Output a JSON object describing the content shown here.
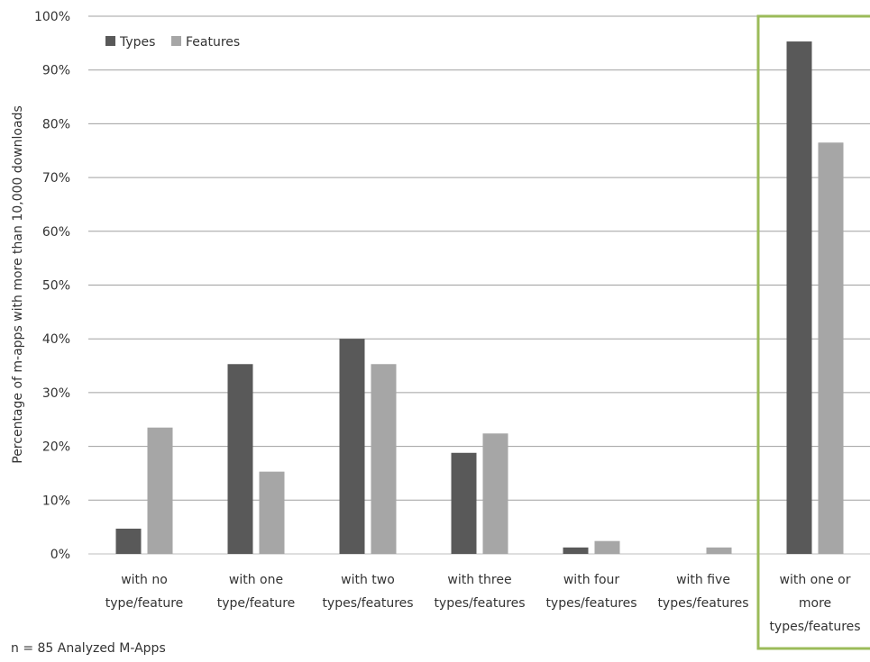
{
  "chart_data": {
    "type": "bar",
    "ylabel": "Percentage of m-apps with more than 10,000 downloads",
    "ylim": [
      0,
      100
    ],
    "ytick_values": [
      0,
      10,
      20,
      30,
      40,
      50,
      60,
      70,
      80,
      90,
      100
    ],
    "ytick_labels": [
      "0%",
      "10%",
      "20%",
      "30%",
      "40%",
      "50%",
      "60%",
      "70%",
      "80%",
      "90%",
      "100%"
    ],
    "grid": true,
    "legend_position": "top-left",
    "categories": [
      [
        "with no",
        "type/feature"
      ],
      [
        "with one",
        "type/feature"
      ],
      [
        "with two",
        "types/features"
      ],
      [
        "with three",
        "types/features"
      ],
      [
        "with four",
        "types/features"
      ],
      [
        "with five",
        "types/features"
      ],
      [
        "with one or",
        "more",
        "types/features"
      ]
    ],
    "series": [
      {
        "name": "Types",
        "color": "#595959",
        "values": [
          4.7,
          35.3,
          40.0,
          18.8,
          1.2,
          0.0,
          95.3
        ]
      },
      {
        "name": "Features",
        "color": "#a6a6a6",
        "values": [
          23.5,
          15.3,
          35.3,
          22.4,
          2.4,
          1.2,
          76.5
        ]
      }
    ],
    "highlight": {
      "category_index": 6,
      "color": "#9bbb59"
    }
  },
  "note": "n = 85 Analyzed M-Apps"
}
